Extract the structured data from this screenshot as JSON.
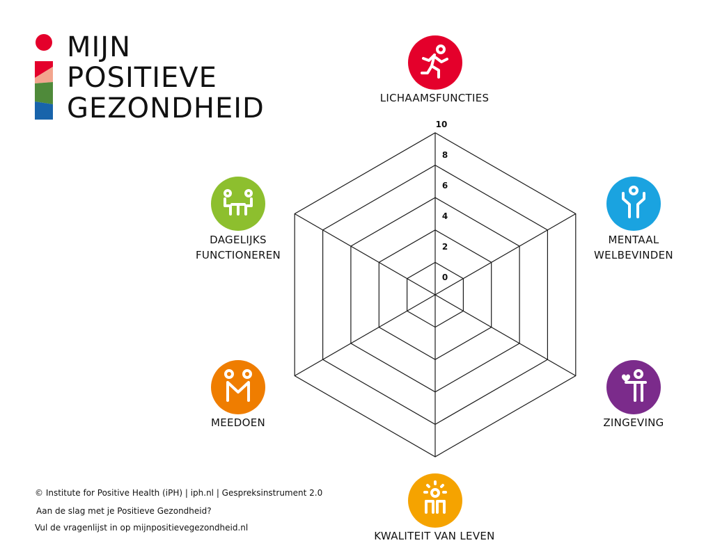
{
  "logo": {
    "lines": [
      "MIJN",
      "POSITIEVE",
      "GEZONDHEID"
    ],
    "colors": [
      "#e4002b",
      "#f3a58e",
      "#4f8a3a",
      "#1864ab"
    ]
  },
  "radar": {
    "ticks": [
      "10",
      "8",
      "6",
      "4",
      "2",
      "0"
    ],
    "levels": 5
  },
  "dimensions": [
    {
      "label": "LICHAAMSFUNCTIES",
      "color": "#e4002b",
      "icon": "running-person-icon"
    },
    {
      "label": "MENTAAL\nWELBEVINDEN",
      "color": "#1aa3e0",
      "icon": "person-arms-up-icon"
    },
    {
      "label": "ZINGEVING",
      "color": "#7b2b8b",
      "icon": "person-with-heart-icon"
    },
    {
      "label": "KWALITEIT VAN LEVEN",
      "color": "#f5a300",
      "icon": "sun-people-icon"
    },
    {
      "label": "MEEDOEN",
      "color": "#ef7d00",
      "icon": "two-people-holding-hands-icon"
    },
    {
      "label": "DAGELIJKS\nFUNCTIONEREN",
      "color": "#8dbf2e",
      "icon": "people-at-table-icon"
    }
  ],
  "footer": {
    "line1": "© Institute for Positive Health (iPH) | iph.nl | Gespreksinstrument 2.0",
    "line2": "Aan de slag met je Positieve Gezondheid?",
    "line3": "Vul de vragenlijst in op mijnpositievegezondheid.nl"
  }
}
